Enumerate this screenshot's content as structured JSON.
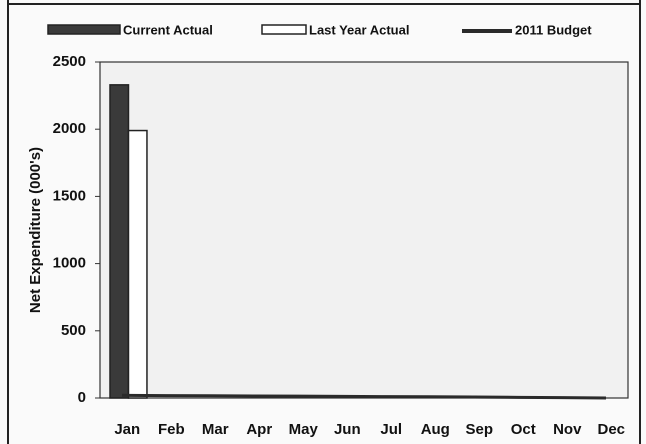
{
  "chart_data": {
    "type": "bar",
    "y_label": "Net Expenditure (000's)",
    "categories": [
      "Jan",
      "Feb",
      "Mar",
      "Apr",
      "May",
      "Jun",
      "Jul",
      "Aug",
      "Sep",
      "Oct",
      "Nov",
      "Dec"
    ],
    "series": [
      {
        "name": "Current Actual",
        "type": "bar",
        "color": "#3a3a3a",
        "values": [
          2330,
          null,
          null,
          null,
          null,
          null,
          null,
          null,
          null,
          null,
          null,
          null
        ]
      },
      {
        "name": "Last Year Actual",
        "type": "bar",
        "color": "#ffffff",
        "values": [
          1990,
          null,
          null,
          null,
          null,
          null,
          null,
          null,
          null,
          null,
          null,
          null
        ]
      },
      {
        "name": "2011 Budget",
        "type": "line",
        "color": "#2a2a2a",
        "values": [
          20,
          18,
          17,
          15,
          14,
          12,
          10,
          9,
          7,
          5,
          3,
          0
        ]
      }
    ],
    "ylim": [
      0,
      2500
    ],
    "yticks": [
      0,
      500,
      1000,
      1500,
      2000,
      2500
    ],
    "grid": false
  }
}
